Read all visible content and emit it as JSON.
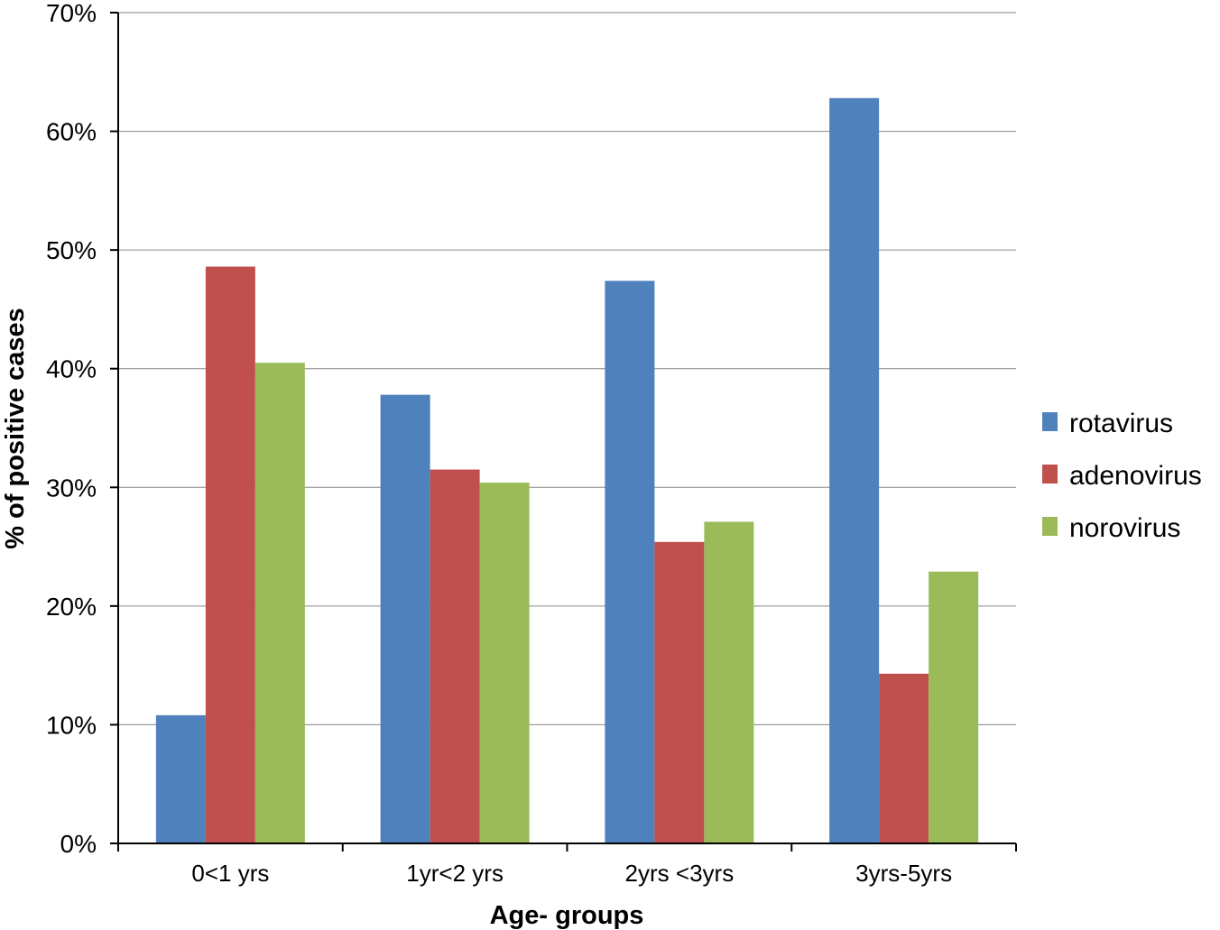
{
  "chart_data": {
    "type": "bar",
    "title": "",
    "xlabel": "Age- groups",
    "ylabel": "% of positive cases",
    "categories": [
      "0<1 yrs",
      "1yr<2 yrs",
      "2yrs <3yrs",
      "3yrs-5yrs"
    ],
    "series": [
      {
        "name": "rotavirus",
        "color": "#4f81bd",
        "values": [
          10.8,
          37.8,
          47.4,
          62.8
        ]
      },
      {
        "name": "adenovirus",
        "color": "#c0504d",
        "values": [
          48.6,
          31.5,
          25.4,
          14.3
        ]
      },
      {
        "name": "norovirus",
        "color": "#9bbb59",
        "values": [
          40.5,
          30.4,
          27.1,
          22.9
        ]
      }
    ],
    "ylim": [
      0,
      70
    ],
    "ytick_labels": [
      "0%",
      "10%",
      "20%",
      "30%",
      "40%",
      "50%",
      "60%",
      "70%"
    ],
    "grid": "horizontal major gridlines",
    "legend_position": "right"
  }
}
